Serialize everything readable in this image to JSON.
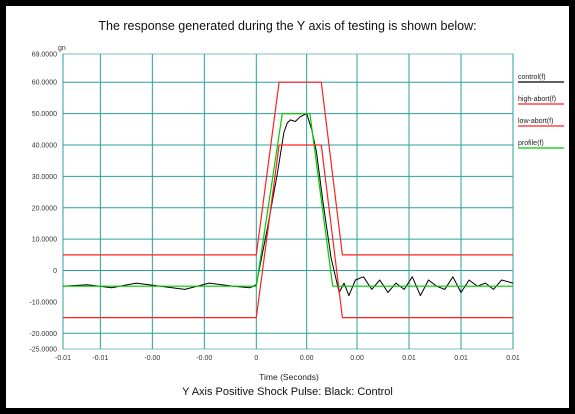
{
  "header": {
    "title": "The response generated during the Y axis of testing is shown below:"
  },
  "footer": {
    "caption": "Y Axis Positive Shock Pulse: Black: Control"
  },
  "chart_data": {
    "type": "line",
    "xlabel": "Time (Seconds)",
    "ylabel": "gn",
    "y_tick_labels": [
      "69.0000",
      "60.0000",
      "50.0000",
      "40.0000",
      "30.0000",
      "20.0000",
      "10.0000",
      "0",
      "-10.0000",
      "-20.0000",
      "-25.0000"
    ],
    "y_tick_values": [
      69,
      60,
      50,
      40,
      30,
      20,
      10,
      0,
      -10,
      -20,
      -25
    ],
    "x_tick_labels": [
      "-0.01",
      "-0.01",
      "-0.00",
      "-0.00",
      "0",
      "0.00",
      "0.00",
      "0.01",
      "0.01",
      "0.01"
    ],
    "x_tick_values": [
      -0.015,
      -0.0127,
      -0.0095,
      -0.0063,
      -0.0031,
      0,
      0.0031,
      0.0063,
      0.0095,
      0.0127
    ],
    "xlim": [
      -0.015,
      0.0127
    ],
    "ylim": [
      -25,
      69
    ],
    "horizontal_grid": [
      -20,
      0,
      10,
      20,
      30,
      40,
      50,
      60
    ],
    "grid": true,
    "legend_position": "right",
    "series": [
      {
        "name": "control(f)",
        "color": "#000000",
        "x": [
          -0.015,
          -0.0135,
          -0.012,
          -0.0105,
          -0.009,
          -0.0075,
          -0.006,
          -0.0045,
          -0.0035,
          -0.0031,
          -0.0024,
          -0.0018,
          -0.0014,
          -0.0012,
          -0.001,
          -0.0007,
          -0.0004,
          0,
          0.0003,
          0.0006,
          0.001,
          0.0015,
          0.002,
          0.0023,
          0.0026,
          0.003,
          0.0035,
          0.004,
          0.0045,
          0.005,
          0.0055,
          0.006,
          0.0065,
          0.007,
          0.0075,
          0.008,
          0.0085,
          0.009,
          0.0095,
          0.01,
          0.0105,
          0.011,
          0.0115,
          0.012,
          0.0127
        ],
        "y": [
          -5,
          -4.5,
          -5.5,
          -4,
          -5,
          -6,
          -4,
          -5,
          -5.5,
          -4.5,
          14,
          31,
          44,
          47,
          48,
          47.5,
          49,
          50,
          45,
          38,
          22,
          4,
          -7,
          -4,
          -8,
          -3,
          -2,
          -6,
          -3,
          -7,
          -4,
          -6,
          -2,
          -8,
          -3,
          -5,
          -6,
          -2,
          -7,
          -3,
          -5,
          -4,
          -6,
          -3,
          -4
        ]
      },
      {
        "name": "high-abort(f)",
        "color": "#ff2020",
        "x": [
          -0.015,
          -0.0031,
          -0.0017,
          0.0009,
          0.0022,
          0.0127
        ],
        "y": [
          5,
          5,
          60,
          60,
          5,
          5
        ]
      },
      {
        "name": "low-abort(f)",
        "color": "#ff2020",
        "x": [
          -0.015,
          -0.0031,
          -0.0017,
          0.0009,
          0.0022,
          0.0127
        ],
        "y": [
          -15,
          -15,
          40,
          40,
          -15,
          -15
        ]
      },
      {
        "name": "profile(f)",
        "color": "#00cc00",
        "x": [
          -0.015,
          -0.0031,
          -0.0015,
          -0.0004,
          0,
          0.0002,
          0.0016,
          0.0127
        ],
        "y": [
          -5,
          -5,
          50,
          50,
          50,
          50,
          -5,
          -5
        ]
      }
    ]
  }
}
